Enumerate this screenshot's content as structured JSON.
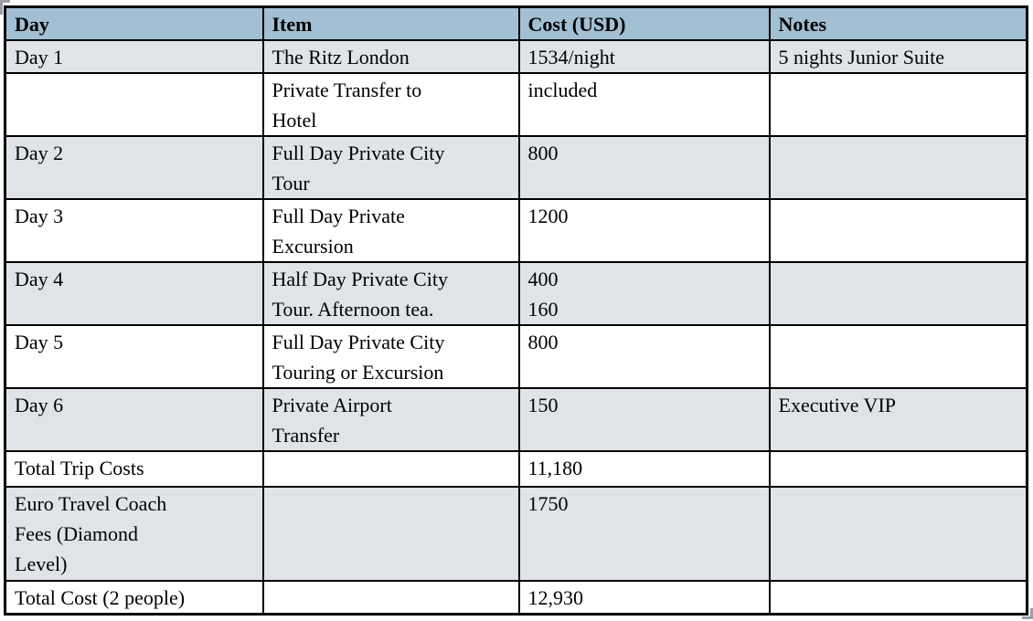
{
  "table": {
    "columns": [
      "Day",
      "Item",
      "Cost (USD)",
      "Notes"
    ],
    "rows": [
      {
        "day": "Day 1",
        "item": "The Ritz London",
        "cost": "1534/night",
        "notes": "5 nights Junior Suite"
      },
      {
        "day": "",
        "item": "Private Transfer to\nHotel",
        "cost": "included",
        "notes": ""
      },
      {
        "day": "Day 2",
        "item": "Full Day Private City\nTour",
        "cost": "800",
        "notes": ""
      },
      {
        "day": "Day 3",
        "item": "Full Day Private\nExcursion",
        "cost": "1200",
        "notes": ""
      },
      {
        "day": "Day 4",
        "item": "Half Day Private City\nTour. Afternoon tea.",
        "cost": "400\n160",
        "notes": ""
      },
      {
        "day": "Day 5",
        "item": "Full Day Private City\nTouring or Excursion",
        "cost": "800",
        "notes": ""
      },
      {
        "day": "Day 6",
        "item": "Private Airport\nTransfer",
        "cost": "150",
        "notes": "Executive VIP"
      },
      {
        "day": "Total Trip Costs",
        "item": "",
        "cost": "11,180",
        "notes": ""
      },
      {
        "day": "Euro Travel Coach\nFees (Diamond\nLevel)",
        "item": "",
        "cost": "1750",
        "notes": ""
      },
      {
        "day": "Total Cost (2 people)",
        "item": "",
        "cost": "12,930",
        "notes": ""
      }
    ]
  },
  "colors": {
    "header_bg": "#a2bfd3",
    "band_bg": "#e0e4e8",
    "row_bg": "#ffffff",
    "border": "#000000",
    "handle": "#9aa0a6"
  }
}
